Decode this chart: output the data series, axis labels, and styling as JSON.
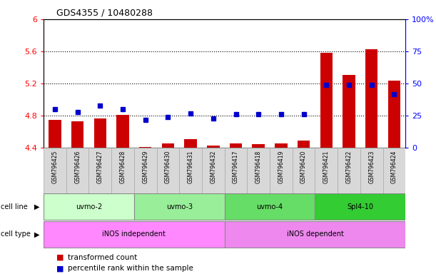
{
  "title": "GDS4355 / 10480288",
  "samples": [
    "GSM796425",
    "GSM796426",
    "GSM796427",
    "GSM796428",
    "GSM796429",
    "GSM796430",
    "GSM796431",
    "GSM796432",
    "GSM796417",
    "GSM796418",
    "GSM796419",
    "GSM796420",
    "GSM796421",
    "GSM796422",
    "GSM796423",
    "GSM796424"
  ],
  "transformed_count": [
    4.75,
    4.73,
    4.77,
    4.81,
    4.41,
    4.46,
    4.51,
    4.43,
    4.46,
    4.45,
    4.46,
    4.49,
    5.58,
    5.31,
    5.63,
    5.24
  ],
  "percentile_rank": [
    30,
    28,
    33,
    30,
    22,
    24,
    27,
    23,
    26,
    26,
    26,
    26,
    49,
    49,
    49,
    42
  ],
  "cell_line_groups": [
    {
      "label": "uvmo-2",
      "start": 0,
      "end": 3,
      "color": "#ccffcc"
    },
    {
      "label": "uvmo-3",
      "start": 4,
      "end": 7,
      "color": "#99ee99"
    },
    {
      "label": "uvmo-4",
      "start": 8,
      "end": 11,
      "color": "#66dd66"
    },
    {
      "label": "Spl4-10",
      "start": 12,
      "end": 15,
      "color": "#33cc33"
    }
  ],
  "cell_type_groups": [
    {
      "label": "iNOS independent",
      "start": 0,
      "end": 7,
      "color": "#ff88ff"
    },
    {
      "label": "iNOS dependent",
      "start": 8,
      "end": 15,
      "color": "#ee88ee"
    }
  ],
  "ylim_left": [
    4.4,
    6.0
  ],
  "ylim_right": [
    0,
    100
  ],
  "yticks_left": [
    4.4,
    4.8,
    5.2,
    5.6,
    6.0
  ],
  "yticks_right": [
    0,
    25,
    50,
    75,
    100
  ],
  "ytick_labels_left": [
    "4.4",
    "4.8",
    "5.2",
    "5.6",
    "6"
  ],
  "ytick_labels_right": [
    "0",
    "25",
    "50",
    "75",
    "100%"
  ],
  "hgrid_lines": [
    4.8,
    5.2,
    5.6
  ],
  "bar_color": "#cc0000",
  "dot_color": "#0000cc",
  "bar_width": 0.55,
  "base_value": 4.4,
  "legend_bar_label": "transformed count",
  "legend_dot_label": "percentile rank within the sample",
  "cell_line_label": "cell line",
  "cell_type_label": "cell type"
}
